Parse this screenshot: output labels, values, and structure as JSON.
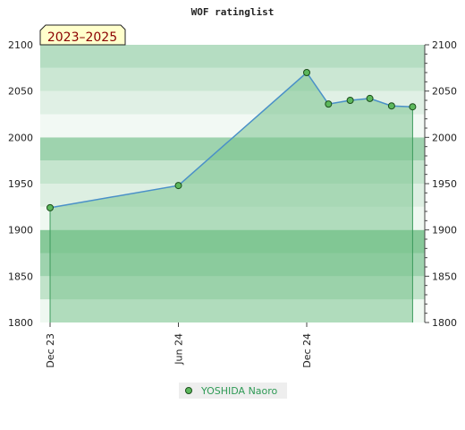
{
  "chart_data": {
    "type": "line",
    "title": "WOF ratinglist",
    "period_label": "2023–2025",
    "x_ticks": [
      "Dec 23",
      "Jun 24",
      "Dec 24"
    ],
    "ylim": [
      1800,
      2100
    ],
    "y_ticks": [
      1800,
      1850,
      1900,
      1950,
      2000,
      2050,
      2100
    ],
    "series": [
      {
        "name": "YOSHIDA Naoro",
        "x": [
          "2023-12",
          "2024-06",
          "2024-12",
          "2025-01",
          "2025-02",
          "2025-03",
          "2025-04",
          "2025-05"
        ],
        "values": [
          1924,
          1948,
          2070,
          2036,
          2040,
          2042,
          2034,
          2033
        ]
      }
    ],
    "legend_position": "bottom-center",
    "grid": true
  },
  "colors": {
    "line": "#4a90c8",
    "marker_fill": "#5cb85c",
    "marker_stroke": "#1a4d1a",
    "area": "#7cc58f",
    "drop_line": "#3c9a5c",
    "legend_bg": "#eeeeee",
    "legend_text": "#2e9a55",
    "period_bg": "#ffffcc",
    "period_text": "#8b0000"
  }
}
